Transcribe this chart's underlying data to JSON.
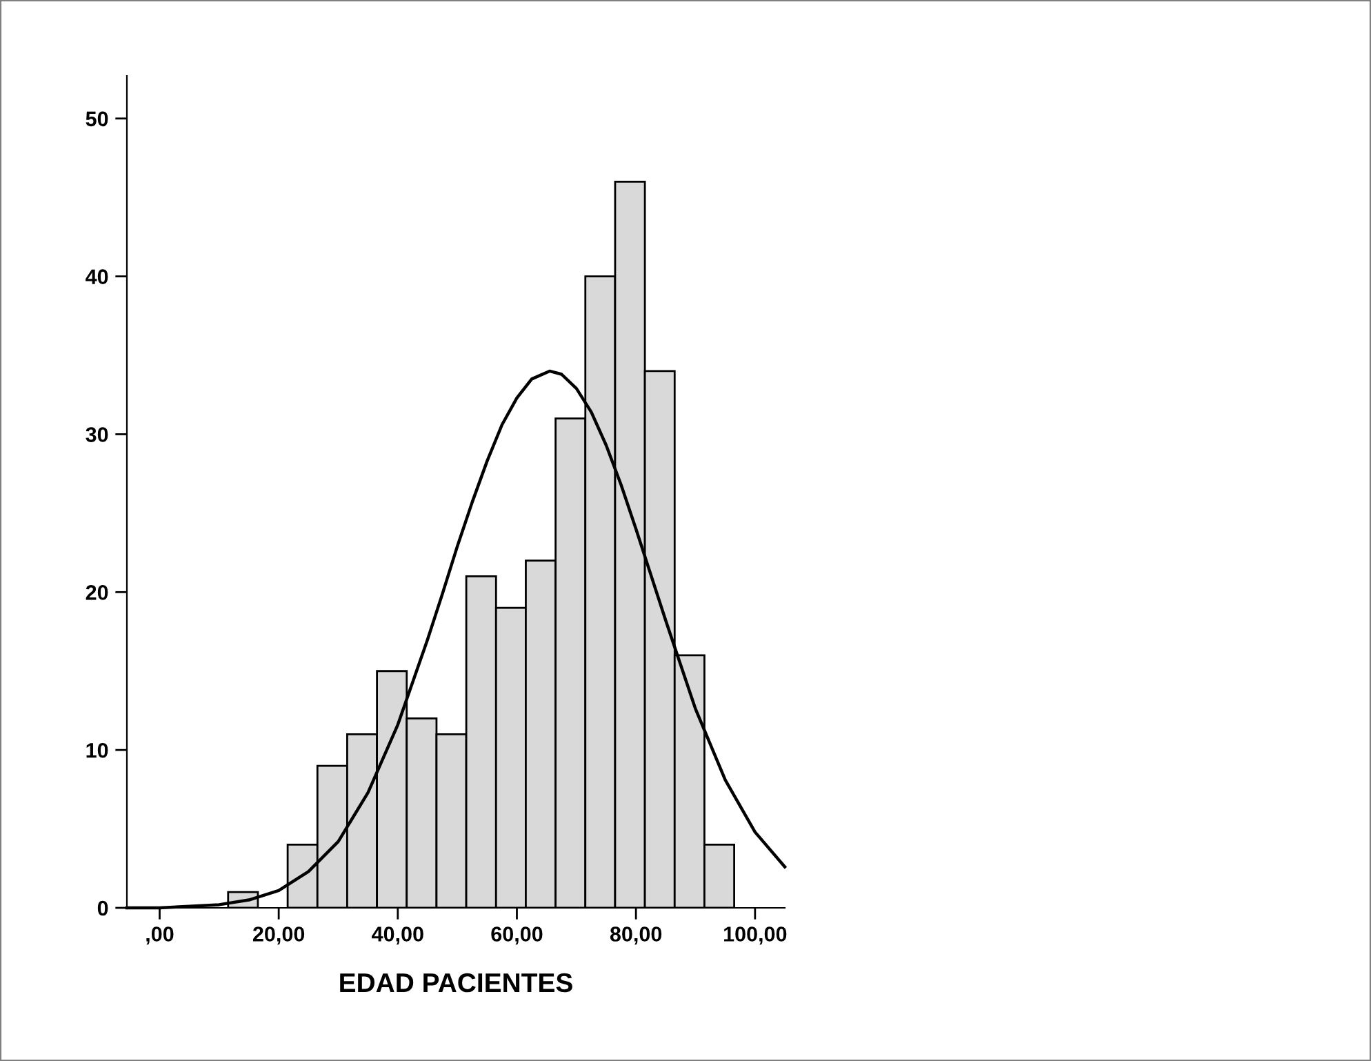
{
  "chart_data": {
    "type": "histogram",
    "xlabel": "EDAD PACIENTES",
    "bins": [
      11.5,
      16.5,
      21.5,
      26.5,
      31.5,
      36.5,
      41.5,
      46.5,
      51.5,
      56.5,
      61.5,
      66.5,
      71.5,
      76.5,
      81.5,
      86.5,
      91.5,
      96.5
    ],
    "series": [
      {
        "color": "#d9d9d9",
        "values": [
          1,
          0,
          4,
          9,
          11,
          15,
          12,
          11,
          21,
          19,
          22,
          31,
          40,
          46,
          34,
          16,
          4
        ]
      },
      {
        "type": "line",
        "color": "#000000",
        "x": [
          -5.5,
          0,
          5,
          10,
          15,
          20,
          25,
          30,
          35,
          40,
          45,
          47.5,
          50,
          52.5,
          55,
          57.5,
          60,
          62.5,
          65.5,
          67.5,
          70,
          72.5,
          75,
          77.5,
          80,
          82.5,
          85,
          90,
          95,
          100,
          105
        ],
        "values": [
          0,
          0,
          0.1,
          0.2,
          0.5,
          1.1,
          2.3,
          4.2,
          7.3,
          11.6,
          17,
          19.9,
          22.9,
          25.7,
          28.3,
          30.6,
          32.3,
          33.5,
          34,
          33.8,
          32.9,
          31.4,
          29.3,
          26.8,
          24,
          21.1,
          18.2,
          12.6,
          8.1,
          4.8,
          2.6
        ]
      }
    ],
    "xlim": [
      -5.5,
      105
    ],
    "ylim": [
      0,
      52.7
    ],
    "xticks": [
      {
        "value": 0,
        "label": ",00"
      },
      {
        "value": 20,
        "label": "20,00"
      },
      {
        "value": 40,
        "label": "40,00"
      },
      {
        "value": 60,
        "label": "60,00"
      },
      {
        "value": 80,
        "label": "80,00"
      },
      {
        "value": 100,
        "label": "100,00"
      }
    ],
    "yticks": [
      0,
      10,
      20,
      30,
      40,
      50
    ],
    "grid": false,
    "legend": false
  }
}
